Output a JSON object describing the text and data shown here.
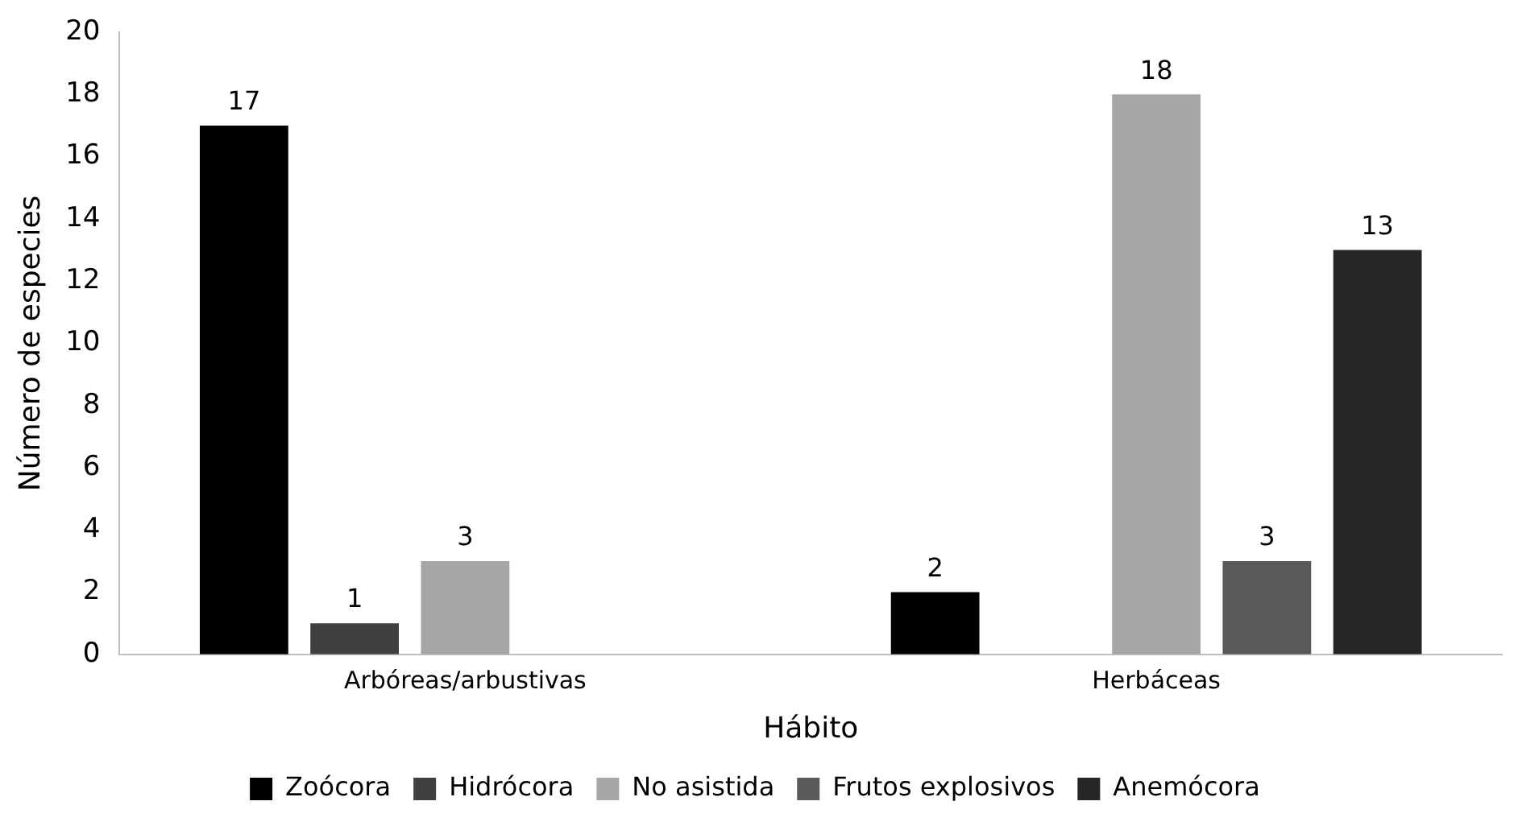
{
  "chart_data": {
    "type": "bar",
    "xlabel": "Hábito",
    "ylabel": "Número de especies",
    "categories": [
      "Arbóreas/arbustivas",
      "Herbáceas"
    ],
    "series": [
      {
        "name": "Zoócora",
        "color": "#000000",
        "values": [
          17,
          2
        ]
      },
      {
        "name": "Hidrócora",
        "color": "#404040",
        "values": [
          1,
          null
        ]
      },
      {
        "name": "No asistida",
        "color": "#a6a6a6",
        "values": [
          3,
          18
        ]
      },
      {
        "name": "Frutos explosivos",
        "color": "#595959",
        "values": [
          null,
          3
        ]
      },
      {
        "name": "Anemócora",
        "color": "#262626",
        "values": [
          null,
          13
        ]
      }
    ],
    "ylim": [
      0,
      20
    ],
    "yticks": [
      0,
      2,
      4,
      6,
      8,
      10,
      12,
      14,
      16,
      18,
      20
    ],
    "grid": false,
    "legend": "bottom",
    "data_labels": true
  }
}
